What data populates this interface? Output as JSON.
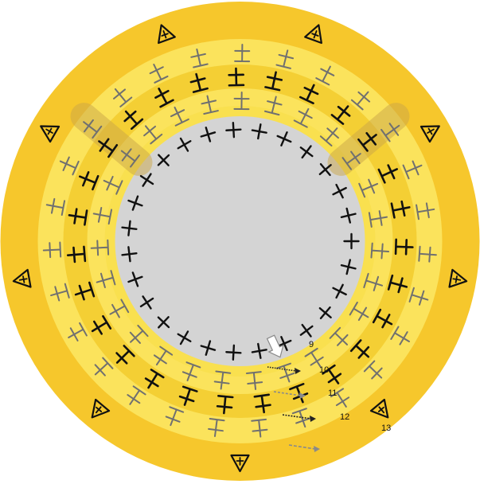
{
  "colors": {
    "background": "#ffffff",
    "outer_ring": "#f6c72c",
    "ring_pale": "#fbe35c",
    "ring_mid": "#f4cf34",
    "inner_band": "#f9e04f",
    "center_fill": "#d4d4d4",
    "shaded_patch": "#c9a648",
    "stitch_dark": "#111111",
    "stitch_gray": "#707070",
    "indicator_arrow": "#ffffff",
    "path_dark": "#222222",
    "path_gray": "#8a8a8a"
  },
  "icons": {
    "center_stitch": "plus-stitch-icon",
    "ring_stitch": "double-bar-stitch-icon",
    "outer_stitch": "triangle-stitch-icon",
    "start_marker": "hollow-arrow-icon"
  },
  "round_counts": [
    27,
    27,
    27,
    27,
    9
  ],
  "round_labels": [
    "9",
    "10",
    "11",
    "12",
    "13"
  ]
}
